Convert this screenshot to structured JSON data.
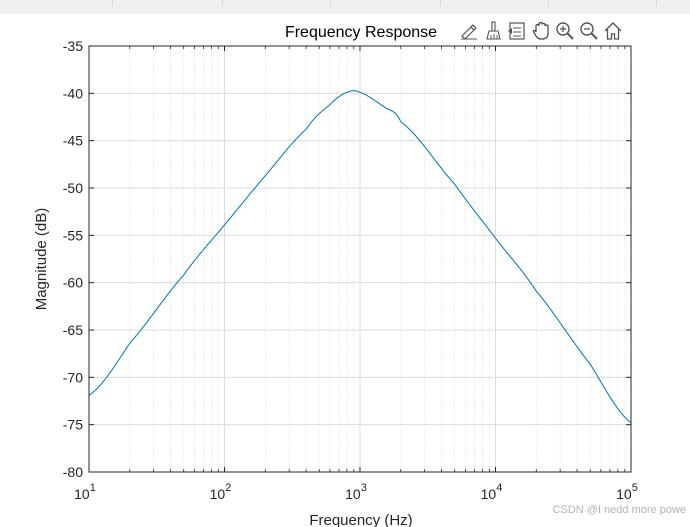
{
  "chart_data": {
    "type": "line",
    "title": "Frequency Response",
    "xlabel": "Frequency (Hz)",
    "ylabel": "Magnitude (dB)",
    "xscale": "log",
    "xlim": [
      10,
      100000
    ],
    "ylim": [
      -80,
      -35
    ],
    "grid": true,
    "minor_grid_x": true,
    "yticks": [
      "-35",
      "-40",
      "-45",
      "-50",
      "-55",
      "-60",
      "-65",
      "-70",
      "-75",
      "-80"
    ],
    "xticks": [
      {
        "base": "10",
        "exp": "1"
      },
      {
        "base": "10",
        "exp": "2"
      },
      {
        "base": "10",
        "exp": "3"
      },
      {
        "base": "10",
        "exp": "4"
      },
      {
        "base": "10",
        "exp": "5"
      }
    ],
    "series": [
      {
        "color": "#0072bd",
        "x": [
          10,
          20,
          50,
          100,
          200,
          400,
          600,
          800,
          1000,
          1500,
          2000,
          5000,
          10000,
          20000,
          50000,
          100000
        ],
        "y": [
          -71.9,
          -66.4,
          -59.2,
          -53.9,
          -48.7,
          -43.8,
          -41.2,
          -39.9,
          -39.9,
          -41.4,
          -43.0,
          -49.6,
          -55.3,
          -60.9,
          -68.6,
          -74.8
        ]
      }
    ]
  },
  "toolbar": {
    "icons": [
      "edit-icon",
      "brush-icon",
      "legend-icon",
      "pan-icon",
      "zoom-in-icon",
      "zoom-out-icon",
      "home-icon"
    ]
  },
  "watermark": "CSDN @I nedd more powe"
}
